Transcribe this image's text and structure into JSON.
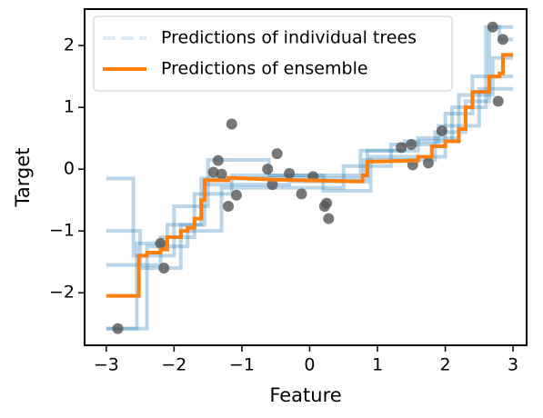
{
  "chart_data": {
    "type": "line",
    "xlabel": "Feature",
    "ylabel": "Target",
    "xlim": [
      -3.32,
      3.2
    ],
    "ylim": [
      -2.85,
      2.59
    ],
    "xticks": [
      {
        "value": -3,
        "label": "−3"
      },
      {
        "value": -2,
        "label": "−2"
      },
      {
        "value": -1,
        "label": "−1"
      },
      0,
      1,
      2,
      3
    ],
    "yticks": [
      {
        "value": -2,
        "label": "−2"
      },
      {
        "value": -1,
        "label": "−1"
      },
      0,
      1,
      2
    ],
    "legend": "upper left",
    "series": [
      {
        "name": "Predictions of individual trees",
        "type": "line",
        "color": "#1f77b4",
        "dashed": true,
        "x": [
          -3,
          -2.55,
          -2.55,
          -2.1,
          -2.1,
          -1.6,
          -1.6,
          0.8,
          0.8,
          1.85,
          1.85,
          2.3,
          2.3,
          2.65,
          2.65,
          2.8,
          2.8,
          3
        ],
        "values": [
          -2.58,
          -2.58,
          -1.2,
          -1.2,
          -0.9,
          -0.9,
          -0.15,
          -0.15,
          0.15,
          0.15,
          0.6,
          0.6,
          1.1,
          1.1,
          2.3,
          2.3,
          2.1,
          2.1
        ]
      },
      {
        "type": "line",
        "color": "#1f77b4",
        "dashed": true,
        "x": [
          -3,
          -2.5,
          -2.5,
          -1.9,
          -1.9,
          -1.55,
          -1.55,
          -0.3,
          -0.3,
          0.85,
          0.85,
          1.6,
          1.6,
          2.2,
          2.2,
          2.7,
          2.7,
          3
        ],
        "values": [
          -1.0,
          -1.0,
          -1.6,
          -1.6,
          -0.9,
          -0.9,
          -0.25,
          -0.25,
          -0.2,
          -0.2,
          0.3,
          0.3,
          0.5,
          0.5,
          1.2,
          1.2,
          1.8,
          1.8
        ]
      },
      {
        "type": "line",
        "color": "#1f77b4",
        "dashed": true,
        "x": [
          -3,
          -2.2,
          -2.2,
          -1.7,
          -1.7,
          -1.15,
          -1.15,
          0.2,
          0.2,
          0.9,
          0.9,
          2.0,
          2.0,
          2.4,
          2.4,
          3
        ],
        "values": [
          -1.55,
          -1.55,
          -1.1,
          -1.1,
          -0.4,
          -0.4,
          -0.1,
          -0.1,
          -0.35,
          -0.35,
          0.2,
          0.2,
          0.9,
          0.9,
          1.5,
          1.5
        ]
      },
      {
        "type": "line",
        "color": "#1f77b4",
        "dashed": true,
        "x": [
          -3,
          -2.6,
          -2.6,
          -2.0,
          -2.0,
          -1.5,
          -1.5,
          -0.6,
          -0.6,
          0.75,
          0.75,
          1.4,
          1.4,
          2.1,
          2.1,
          2.6,
          2.6,
          3
        ],
        "values": [
          -0.15,
          -0.15,
          -1.4,
          -1.4,
          -0.6,
          -0.6,
          0.15,
          0.15,
          -0.1,
          -0.1,
          0.3,
          0.3,
          0.45,
          0.45,
          1.0,
          1.0,
          2.3,
          2.3
        ]
      },
      {
        "type": "line",
        "color": "#1f77b4",
        "dashed": true,
        "x": [
          -3,
          -2.4,
          -2.4,
          -1.8,
          -1.8,
          -1.3,
          -1.3,
          0.5,
          0.5,
          1.2,
          1.2,
          1.9,
          1.9,
          2.5,
          2.5,
          3
        ],
        "values": [
          -2.58,
          -2.58,
          -1.25,
          -1.25,
          -1.0,
          -1.0,
          -0.3,
          -0.3,
          0.05,
          0.05,
          0.4,
          0.4,
          0.7,
          0.7,
          1.3,
          1.3
        ]
      },
      {
        "type": "scatter",
        "color": "#555555",
        "x": [
          -2.83,
          -2.2,
          -2.15,
          -1.42,
          -1.35,
          -1.3,
          -1.2,
          -1.15,
          -1.08,
          -0.62,
          -0.55,
          -0.48,
          -0.3,
          -0.12,
          0.05,
          0.22,
          0.25,
          0.28,
          1.35,
          1.5,
          1.52,
          1.75,
          1.95,
          2.7,
          2.78,
          2.85
        ],
        "values": [
          -2.58,
          -1.2,
          -1.6,
          -0.05,
          0.14,
          -0.08,
          -0.6,
          0.73,
          -0.42,
          0.0,
          -0.25,
          0.25,
          -0.07,
          -0.4,
          -0.12,
          -0.6,
          -0.55,
          -0.8,
          0.35,
          0.4,
          0.07,
          0.1,
          0.62,
          2.3,
          1.1,
          2.1
        ]
      },
      {
        "name": "Predictions of ensemble",
        "type": "line",
        "color": "#ff7f0e",
        "dashed": false,
        "x": [
          -3,
          -2.52,
          -2.52,
          -2.4,
          -2.4,
          -2.2,
          -2.2,
          -2.1,
          -2.1,
          -1.9,
          -1.9,
          -1.8,
          -1.8,
          -1.7,
          -1.7,
          -1.6,
          -1.6,
          -1.55,
          -1.55,
          -1.2,
          -1.2,
          -0.5,
          0.78,
          0.78,
          0.85,
          0.85,
          1.6,
          1.6,
          1.8,
          1.8,
          2.0,
          2.0,
          2.2,
          2.2,
          2.3,
          2.3,
          2.4,
          2.4,
          2.65,
          2.65,
          2.8,
          2.8,
          2.85,
          2.85,
          3
        ],
        "values": [
          -2.05,
          -2.05,
          -1.4,
          -1.4,
          -1.35,
          -1.35,
          -1.3,
          -1.3,
          -1.1,
          -1.1,
          -1.0,
          -1.0,
          -0.95,
          -0.95,
          -0.8,
          -0.8,
          -0.5,
          -0.5,
          -0.18,
          -0.18,
          -0.14,
          -0.17,
          -0.2,
          -0.1,
          -0.1,
          0.12,
          0.14,
          0.2,
          0.2,
          0.37,
          0.37,
          0.45,
          0.45,
          0.65,
          0.65,
          1.0,
          1.0,
          1.25,
          1.25,
          1.5,
          1.5,
          1.55,
          1.55,
          1.85,
          1.85
        ]
      }
    ]
  }
}
